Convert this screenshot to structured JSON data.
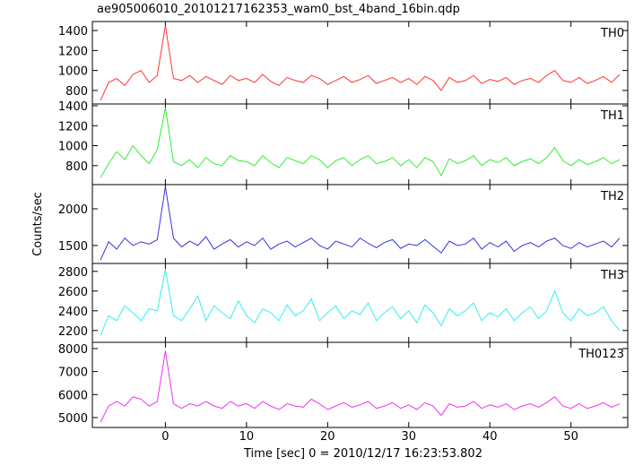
{
  "figure": {
    "title": "ae905006010_20101217162353_wam0_bst_4band_16bin.qdp",
    "xlabel": "Time [sec] 0 = 2010/12/17 16:23:53.802",
    "ylabel": "Counts/sec"
  },
  "chart_data": [
    {
      "type": "line",
      "label": "TH0",
      "color": "#ff3333",
      "xlim": [
        -9,
        57
      ],
      "ylim": [
        665,
        1490
      ],
      "yticks": [
        800,
        1000,
        1200,
        1400
      ],
      "x": [
        -8,
        -7,
        -6,
        -5,
        -4,
        -3,
        -2,
        -1,
        0,
        1,
        2,
        3,
        4,
        5,
        6,
        7,
        8,
        9,
        10,
        11,
        12,
        13,
        14,
        15,
        16,
        17,
        18,
        19,
        20,
        21,
        22,
        23,
        24,
        25,
        26,
        27,
        28,
        29,
        30,
        31,
        32,
        33,
        34,
        35,
        36,
        37,
        38,
        39,
        40,
        41,
        42,
        43,
        44,
        45,
        46,
        47,
        48,
        49,
        50,
        51,
        52,
        53,
        54,
        55,
        56
      ],
      "values": [
        700,
        880,
        920,
        850,
        960,
        1000,
        880,
        950,
        1450,
        920,
        900,
        950,
        880,
        940,
        900,
        860,
        950,
        900,
        920,
        880,
        960,
        890,
        850,
        930,
        900,
        880,
        950,
        920,
        860,
        900,
        940,
        880,
        910,
        950,
        870,
        900,
        930,
        880,
        920,
        860,
        940,
        900,
        800,
        930,
        880,
        900,
        950,
        870,
        910,
        890,
        930,
        860,
        900,
        920,
        880,
        950,
        1000,
        900,
        880,
        930,
        870,
        900,
        940,
        880,
        960
      ]
    },
    {
      "type": "line",
      "label": "TH1",
      "color": "#33ee33",
      "xlim": [
        -9,
        57
      ],
      "ylim": [
        610,
        1418
      ],
      "yticks": [
        800,
        1000,
        1200,
        1400
      ],
      "x": [
        -8,
        -7,
        -6,
        -5,
        -4,
        -3,
        -2,
        -1,
        0,
        1,
        2,
        3,
        4,
        5,
        6,
        7,
        8,
        9,
        10,
        11,
        12,
        13,
        14,
        15,
        16,
        17,
        18,
        19,
        20,
        21,
        22,
        23,
        24,
        25,
        26,
        27,
        28,
        29,
        30,
        31,
        32,
        33,
        34,
        35,
        36,
        37,
        38,
        39,
        40,
        41,
        42,
        43,
        44,
        45,
        46,
        47,
        48,
        49,
        50,
        51,
        52,
        53,
        54,
        55,
        56
      ],
      "values": [
        680,
        820,
        940,
        860,
        1000,
        900,
        820,
        960,
        1380,
        840,
        800,
        860,
        780,
        880,
        820,
        800,
        900,
        850,
        840,
        800,
        900,
        830,
        780,
        880,
        850,
        820,
        900,
        860,
        780,
        850,
        880,
        800,
        860,
        900,
        820,
        840,
        880,
        800,
        860,
        780,
        880,
        840,
        700,
        870,
        820,
        850,
        900,
        800,
        860,
        830,
        880,
        800,
        840,
        870,
        820,
        880,
        980,
        850,
        800,
        860,
        810,
        840,
        880,
        820,
        860
      ]
    },
    {
      "type": "line",
      "label": "TH2",
      "color": "#3333dd",
      "xlim": [
        -9,
        57
      ],
      "ylim": [
        1255,
        2330
      ],
      "yticks": [
        1500,
        2000
      ],
      "x": [
        -8,
        -7,
        -6,
        -5,
        -4,
        -3,
        -2,
        -1,
        0,
        1,
        2,
        3,
        4,
        5,
        6,
        7,
        8,
        9,
        10,
        11,
        12,
        13,
        14,
        15,
        16,
        17,
        18,
        19,
        20,
        21,
        22,
        23,
        24,
        25,
        26,
        27,
        28,
        29,
        30,
        31,
        32,
        33,
        34,
        35,
        36,
        37,
        38,
        39,
        40,
        41,
        42,
        43,
        44,
        45,
        46,
        47,
        48,
        49,
        50,
        51,
        52,
        53,
        54,
        55,
        56
      ],
      "values": [
        1300,
        1550,
        1450,
        1600,
        1500,
        1550,
        1520,
        1580,
        2300,
        1600,
        1480,
        1560,
        1500,
        1620,
        1450,
        1520,
        1580,
        1480,
        1550,
        1500,
        1600,
        1450,
        1520,
        1560,
        1480,
        1540,
        1600,
        1500,
        1450,
        1560,
        1520,
        1480,
        1600,
        1530,
        1470,
        1540,
        1580,
        1460,
        1520,
        1500,
        1580,
        1490,
        1400,
        1560,
        1500,
        1520,
        1600,
        1450,
        1540,
        1480,
        1560,
        1420,
        1500,
        1540,
        1480,
        1560,
        1600,
        1500,
        1460,
        1540,
        1480,
        1520,
        1560,
        1480,
        1600
      ]
    },
    {
      "type": "line",
      "label": "TH3",
      "color": "#33eeee",
      "xlim": [
        -9,
        57
      ],
      "ylim": [
        2080,
        2880
      ],
      "yticks": [
        2200,
        2400,
        2600,
        2800
      ],
      "x": [
        -8,
        -7,
        -6,
        -5,
        -4,
        -3,
        -2,
        -1,
        0,
        1,
        2,
        3,
        4,
        5,
        6,
        7,
        8,
        9,
        10,
        11,
        12,
        13,
        14,
        15,
        16,
        17,
        18,
        19,
        20,
        21,
        22,
        23,
        24,
        25,
        26,
        27,
        28,
        29,
        30,
        31,
        32,
        33,
        34,
        35,
        36,
        37,
        38,
        39,
        40,
        41,
        42,
        43,
        44,
        45,
        46,
        47,
        48,
        49,
        50,
        51,
        52,
        53,
        54,
        55,
        56
      ],
      "values": [
        2150,
        2350,
        2300,
        2450,
        2380,
        2300,
        2420,
        2400,
        2820,
        2350,
        2300,
        2420,
        2550,
        2300,
        2450,
        2380,
        2320,
        2500,
        2350,
        2280,
        2420,
        2380,
        2300,
        2460,
        2350,
        2400,
        2520,
        2300,
        2380,
        2450,
        2320,
        2400,
        2360,
        2480,
        2300,
        2380,
        2440,
        2320,
        2400,
        2280,
        2460,
        2380,
        2250,
        2420,
        2350,
        2400,
        2480,
        2300,
        2380,
        2340,
        2420,
        2300,
        2380,
        2440,
        2320,
        2400,
        2600,
        2380,
        2300,
        2420,
        2350,
        2380,
        2440,
        2300,
        2200
      ]
    },
    {
      "type": "line",
      "label": "TH0123",
      "color": "#ee33ee",
      "xlim": [
        -9,
        57
      ],
      "ylim": [
        4570,
        8270
      ],
      "yticks": [
        5000,
        6000,
        7000,
        8000
      ],
      "x": [
        -8,
        -7,
        -6,
        -5,
        -4,
        -3,
        -2,
        -1,
        0,
        1,
        2,
        3,
        4,
        5,
        6,
        7,
        8,
        9,
        10,
        11,
        12,
        13,
        14,
        15,
        16,
        17,
        18,
        19,
        20,
        21,
        22,
        23,
        24,
        25,
        26,
        27,
        28,
        29,
        30,
        31,
        32,
        33,
        34,
        35,
        36,
        37,
        38,
        39,
        40,
        41,
        42,
        43,
        44,
        45,
        46,
        47,
        48,
        49,
        50,
        51,
        52,
        53,
        54,
        55,
        56
      ],
      "values": [
        4800,
        5500,
        5700,
        5500,
        5900,
        5800,
        5500,
        5700,
        7900,
        5600,
        5400,
        5600,
        5500,
        5700,
        5500,
        5400,
        5700,
        5500,
        5600,
        5400,
        5700,
        5500,
        5350,
        5600,
        5500,
        5450,
        5800,
        5600,
        5350,
        5500,
        5650,
        5450,
        5550,
        5700,
        5400,
        5500,
        5650,
        5400,
        5550,
        5350,
        5650,
        5500,
        5100,
        5600,
        5450,
        5500,
        5700,
        5400,
        5550,
        5450,
        5600,
        5350,
        5500,
        5600,
        5450,
        5650,
        5900,
        5500,
        5400,
        5600,
        5400,
        5500,
        5650,
        5450,
        5600
      ],
      "xticks": [
        0,
        10,
        20,
        30,
        40,
        50
      ]
    }
  ]
}
